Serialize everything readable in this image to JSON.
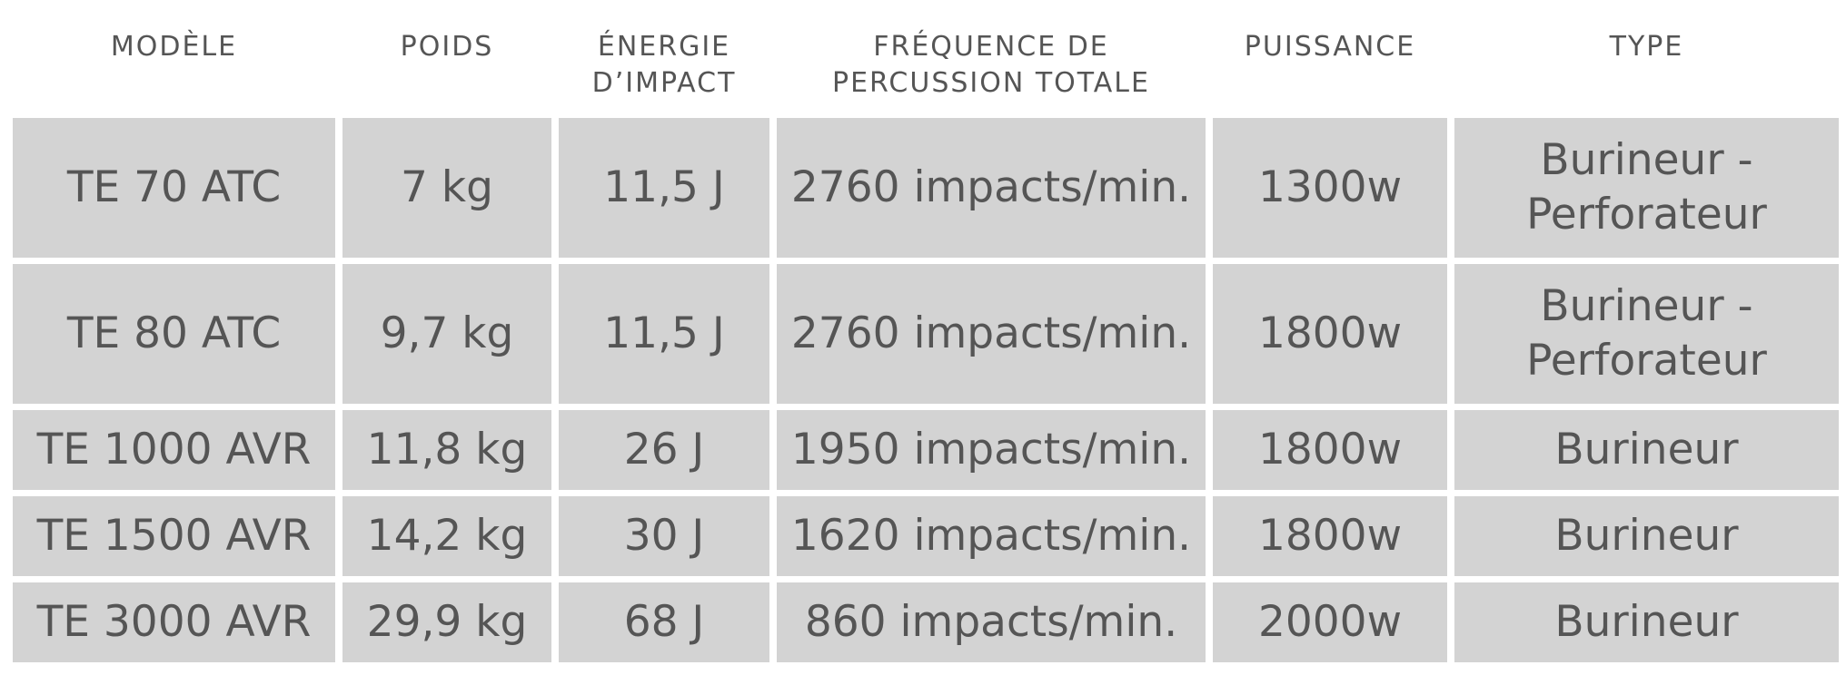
{
  "table": {
    "headers": [
      "MODÈLE",
      "POIDS",
      "ÉNERGIE D’IMPACT",
      "FRÉQUENCE DE PERCUSSION TOTALE",
      "PUISSANCE",
      "TYPE"
    ],
    "header_lines": {
      "energie_1": "ÉNERGIE",
      "energie_2": "D’IMPACT",
      "frequence_1": "FRÉQUENCE DE",
      "frequence_2": "PERCUSSION TOTALE"
    },
    "rows": [
      {
        "modele": "TE 70 ATC",
        "poids": "7 kg",
        "energie": "11,5 J",
        "frequence": "2760 impacts/min.",
        "puissance": "1300w",
        "type": "Burineur - Perforateur",
        "type_line1": "Burineur -",
        "type_line2": "Perforateur"
      },
      {
        "modele": "TE 80 ATC",
        "poids": "9,7 kg",
        "energie": "11,5 J",
        "frequence": "2760 impacts/min.",
        "puissance": "1800w",
        "type": "Burineur - Perforateur",
        "type_line1": "Burineur -",
        "type_line2": "Perforateur"
      },
      {
        "modele": "TE 1000 AVR",
        "poids": "11,8 kg",
        "energie": "26 J",
        "frequence": "1950 impacts/min.",
        "puissance": "1800w",
        "type": "Burineur"
      },
      {
        "modele": "TE 1500 AVR",
        "poids": "14,2 kg",
        "energie": "30 J",
        "frequence": "1620 impacts/min.",
        "puissance": "1800w",
        "type": "Burineur"
      },
      {
        "modele": "TE 3000 AVR",
        "poids": "29,9 kg",
        "energie": "68 J",
        "frequence": "860 impacts/min.",
        "puissance": "2000w",
        "type": "Burineur"
      }
    ]
  },
  "colors": {
    "cell_background": "#d3d3d3",
    "text": "#555555",
    "page_background": "#ffffff"
  }
}
